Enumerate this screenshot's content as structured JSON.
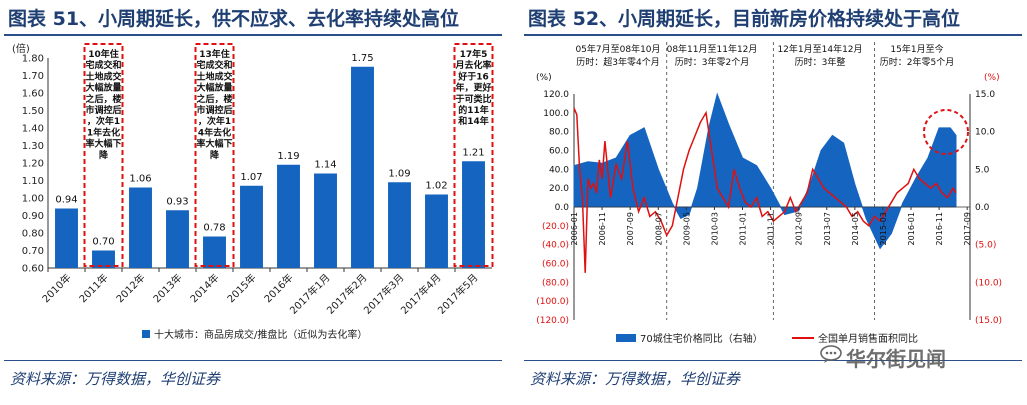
{
  "left": {
    "title": "图表 51、小周期延长，供不应求、去化率持续处高位",
    "source": "资料来源：万得数据，华创证券",
    "chart_data": {
      "type": "bar",
      "ylabel": "(倍)",
      "ylim": [
        0.6,
        1.8
      ],
      "yticks": [
        "0.60",
        "0.70",
        "0.80",
        "0.90",
        "1.00",
        "1.10",
        "1.20",
        "1.30",
        "1.40",
        "1.50",
        "1.60",
        "1.70",
        "1.80"
      ],
      "categories": [
        "2010年",
        "2011年",
        "2012年",
        "2013年",
        "2014年",
        "2015年",
        "2016年",
        "2017年1月",
        "2017年2月",
        "2017年3月",
        "2017年4月",
        "2017年5月"
      ],
      "values": [
        0.94,
        0.7,
        1.06,
        0.93,
        0.78,
        1.07,
        1.19,
        1.14,
        1.75,
        1.09,
        1.02,
        1.21
      ],
      "value_labels": [
        "0.94",
        "0.70",
        "1.06",
        "0.93",
        "0.78",
        "1.07",
        "1.19",
        "1.14",
        "1.75",
        "1.09",
        "1.02",
        "1.21"
      ],
      "legend": "十大城市：商品房成交/推盘比（近似为去化率）",
      "bar_color": "#1565c0",
      "annotations": [
        {
          "category": "2011年",
          "text": "10年住宅成交和土地成交大幅放量之后，楼市调控后，次年11年去化率大幅下降"
        },
        {
          "category": "2014年",
          "text": "13年住宅成交和土地成交大幅放量之后，楼市调控后，次年14年去化率大幅下降"
        },
        {
          "category": "2017年5月",
          "text": "17年5月去化率好于16年，更好于可类比的11年和14年"
        }
      ]
    }
  },
  "right": {
    "title": "图表 52、小周期延长，目前新房价格持续处于高位",
    "source": "资料来源：万得数据，华创证券",
    "watermark": "华尔街见闻",
    "chart_data": {
      "type": "line",
      "left_axis": {
        "label": "(%)",
        "range": [
          -120,
          120
        ],
        "ticks": [
          "120.0",
          "100.0",
          "80.0",
          "60.0",
          "40.0",
          "20.0",
          "0.0",
          "(20.0)",
          "(40.0)",
          "(60.0)",
          "(80.0)",
          "(100.0)",
          "(120.0)"
        ]
      },
      "right_axis": {
        "label": "(%)",
        "range": [
          -15,
          15
        ],
        "ticks": [
          "15.0",
          "10.0",
          "5.0",
          "0.0",
          "(5.0)",
          "(10.0)",
          "(15.0)"
        ]
      },
      "x_ticks": [
        "2006-01",
        "2006-11",
        "2007-09",
        "2008-07",
        "2009-05",
        "2010-03",
        "2011-01",
        "2011-11",
        "2012-09",
        "2013-07",
        "2014-05",
        "2015-03",
        "2016-01",
        "2016-11",
        "2017-09"
      ],
      "periods": [
        {
          "line1": "05年7月至08年10月",
          "line2": "历时：超3年零4个月"
        },
        {
          "line1": "08年11月至11年12月",
          "line2": "历时：3年零2个月"
        },
        {
          "line1": "12年1月至14年12月",
          "line2": "历时：3年整"
        },
        {
          "line1": "15年1月至今",
          "line2": "历时：2年零5个月"
        }
      ],
      "series": [
        {
          "name": "70城住宅价格同比（右轴）",
          "axis": "right",
          "color": "#1565c0",
          "x": [
            "2006-01",
            "2006-06",
            "2006-11",
            "2007-04",
            "2007-09",
            "2008-02",
            "2008-07",
            "2008-12",
            "2009-03",
            "2009-06",
            "2009-09",
            "2010-01",
            "2010-04",
            "2010-08",
            "2011-01",
            "2011-06",
            "2011-11",
            "2012-04",
            "2012-09",
            "2013-01",
            "2013-05",
            "2013-09",
            "2014-01",
            "2014-05",
            "2014-09",
            "2015-02",
            "2015-06",
            "2015-10",
            "2016-03",
            "2016-07",
            "2016-11",
            "2017-03",
            "2017-05"
          ],
          "values": [
            5.5,
            6.0,
            5.8,
            6.5,
            9.5,
            10.5,
            5.0,
            0.5,
            -1.5,
            -1.0,
            2.5,
            10.5,
            15.0,
            11.0,
            6.5,
            5.5,
            2.5,
            -1.0,
            -0.5,
            3.0,
            7.5,
            9.5,
            8.5,
            3.0,
            -1.5,
            -5.5,
            -3.5,
            0.5,
            4.0,
            6.5,
            10.5,
            10.5,
            9.5
          ]
        },
        {
          "name": "全国单月销售面积同比",
          "axis": "left",
          "color": "#e01010",
          "x": [
            "2006-01",
            "2006-02",
            "2006-03",
            "2006-04",
            "2006-05",
            "2006-06",
            "2006-07",
            "2006-08",
            "2006-09",
            "2006-10",
            "2006-11",
            "2006-12",
            "2007-02",
            "2007-04",
            "2007-06",
            "2007-08",
            "2007-10",
            "2007-12",
            "2008-02",
            "2008-04",
            "2008-06",
            "2008-08",
            "2008-10",
            "2008-12",
            "2009-02",
            "2009-04",
            "2009-06",
            "2009-08",
            "2009-10",
            "2009-12",
            "2010-02",
            "2010-04",
            "2010-06",
            "2010-08",
            "2010-10",
            "2010-12",
            "2011-02",
            "2011-04",
            "2011-06",
            "2011-08",
            "2011-10",
            "2011-12",
            "2012-02",
            "2012-04",
            "2012-06",
            "2012-08",
            "2012-10",
            "2012-12",
            "2013-02",
            "2013-04",
            "2013-06",
            "2013-08",
            "2013-10",
            "2013-12",
            "2014-02",
            "2014-04",
            "2014-06",
            "2014-08",
            "2014-10",
            "2014-12",
            "2015-02",
            "2015-04",
            "2015-06",
            "2015-08",
            "2015-10",
            "2015-12",
            "2016-02",
            "2016-04",
            "2016-06",
            "2016-08",
            "2016-10",
            "2016-12",
            "2017-02",
            "2017-04",
            "2017-05"
          ],
          "values": [
            105,
            98,
            40,
            10,
            -70,
            30,
            20,
            25,
            15,
            50,
            30,
            70,
            10,
            45,
            30,
            70,
            20,
            -5,
            10,
            -10,
            -5,
            -15,
            -30,
            -20,
            10,
            40,
            60,
            75,
            90,
            100,
            60,
            20,
            10,
            0,
            40,
            20,
            5,
            0,
            10,
            -10,
            -5,
            -15,
            -10,
            -5,
            10,
            -5,
            5,
            15,
            40,
            30,
            20,
            15,
            10,
            5,
            0,
            -10,
            -5,
            -15,
            -20,
            -10,
            -15,
            -5,
            5,
            15,
            20,
            25,
            40,
            30,
            25,
            20,
            25,
            15,
            10,
            20,
            15
          ]
        }
      ]
    }
  }
}
